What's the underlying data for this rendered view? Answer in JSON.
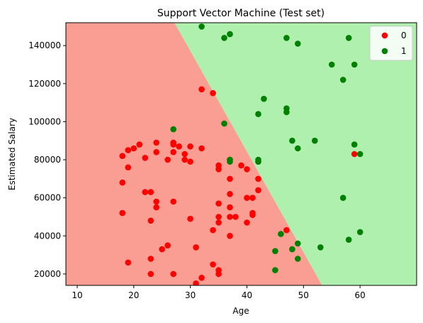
{
  "chart_data": {
    "type": "scatter",
    "title": "Support Vector Machine (Test set)",
    "xlabel": "Age",
    "ylabel": "Estimated Salary",
    "xlim": [
      8,
      70
    ],
    "ylim": [
      14000,
      152000
    ],
    "xticks": [
      10,
      20,
      30,
      40,
      50,
      60
    ],
    "yticks": [
      20000,
      40000,
      60000,
      80000,
      100000,
      120000,
      140000
    ],
    "grid": false,
    "legend_placement": "top-right",
    "decision_regions": {
      "class_0_color": "#fa9e93",
      "class_1_color": "#aff0ae",
      "boundary": [
        [
          27.2,
          152000
        ],
        [
          53.3,
          14000
        ]
      ]
    },
    "series": [
      {
        "name": "0",
        "color": "#ff0000",
        "points": [
          [
            32,
            117000
          ],
          [
            34,
            115000
          ],
          [
            18,
            82000
          ],
          [
            19,
            85000
          ],
          [
            20,
            86000
          ],
          [
            21,
            88000
          ],
          [
            19,
            76000
          ],
          [
            22,
            81000
          ],
          [
            24,
            84000
          ],
          [
            24,
            89000
          ],
          [
            26,
            80000
          ],
          [
            27,
            84000
          ],
          [
            27,
            88000
          ],
          [
            27,
            89000
          ],
          [
            28,
            87000
          ],
          [
            29,
            83000
          ],
          [
            29,
            80000
          ],
          [
            30,
            79000
          ],
          [
            30,
            87000
          ],
          [
            32,
            86000
          ],
          [
            18,
            68000
          ],
          [
            22,
            63000
          ],
          [
            23,
            63000
          ],
          [
            24,
            58000
          ],
          [
            24,
            55000
          ],
          [
            27,
            58000
          ],
          [
            18,
            52000
          ],
          [
            23,
            48000
          ],
          [
            30,
            49000
          ],
          [
            25,
            33000
          ],
          [
            26,
            35000
          ],
          [
            23,
            28000
          ],
          [
            19,
            26000
          ],
          [
            23,
            20000
          ],
          [
            27,
            20000
          ],
          [
            31,
            34000
          ],
          [
            31,
            15000
          ],
          [
            32,
            18000
          ],
          [
            35,
            77000
          ],
          [
            35,
            75000
          ],
          [
            37,
            80000
          ],
          [
            39,
            77000
          ],
          [
            40,
            75000
          ],
          [
            42,
            79000
          ],
          [
            42,
            70000
          ],
          [
            37,
            70000
          ],
          [
            42,
            64000
          ],
          [
            37,
            62000
          ],
          [
            40,
            60000
          ],
          [
            41,
            60000
          ],
          [
            35,
            57000
          ],
          [
            37,
            55000
          ],
          [
            38,
            50000
          ],
          [
            35,
            50000
          ],
          [
            37,
            50000
          ],
          [
            41,
            52000
          ],
          [
            41,
            51000
          ],
          [
            35,
            47000
          ],
          [
            40,
            47000
          ],
          [
            34,
            43000
          ],
          [
            37,
            40000
          ],
          [
            47,
            43000
          ],
          [
            34,
            25000
          ],
          [
            35,
            22000
          ],
          [
            35,
            20000
          ],
          [
            59,
            83000
          ]
        ]
      },
      {
        "name": "1",
        "color": "#008000",
        "points": [
          [
            32,
            150000
          ],
          [
            36,
            144000
          ],
          [
            37,
            146000
          ],
          [
            47,
            144000
          ],
          [
            49,
            141000
          ],
          [
            58,
            144000
          ],
          [
            55,
            130000
          ],
          [
            59,
            130000
          ],
          [
            57,
            122000
          ],
          [
            43,
            112000
          ],
          [
            47,
            107000
          ],
          [
            47,
            105000
          ],
          [
            42,
            104000
          ],
          [
            36,
            99000
          ],
          [
            27,
            96000
          ],
          [
            48,
            90000
          ],
          [
            52,
            90000
          ],
          [
            49,
            86000
          ],
          [
            59,
            88000
          ],
          [
            60,
            83000
          ],
          [
            37,
            80000
          ],
          [
            37,
            79000
          ],
          [
            42,
            80000
          ],
          [
            42,
            79000
          ],
          [
            57,
            60000
          ],
          [
            60,
            42000
          ],
          [
            46,
            41000
          ],
          [
            58,
            38000
          ],
          [
            49,
            36000
          ],
          [
            53,
            34000
          ],
          [
            48,
            33000
          ],
          [
            45,
            32000
          ],
          [
            49,
            28000
          ],
          [
            45,
            22000
          ]
        ]
      }
    ]
  }
}
